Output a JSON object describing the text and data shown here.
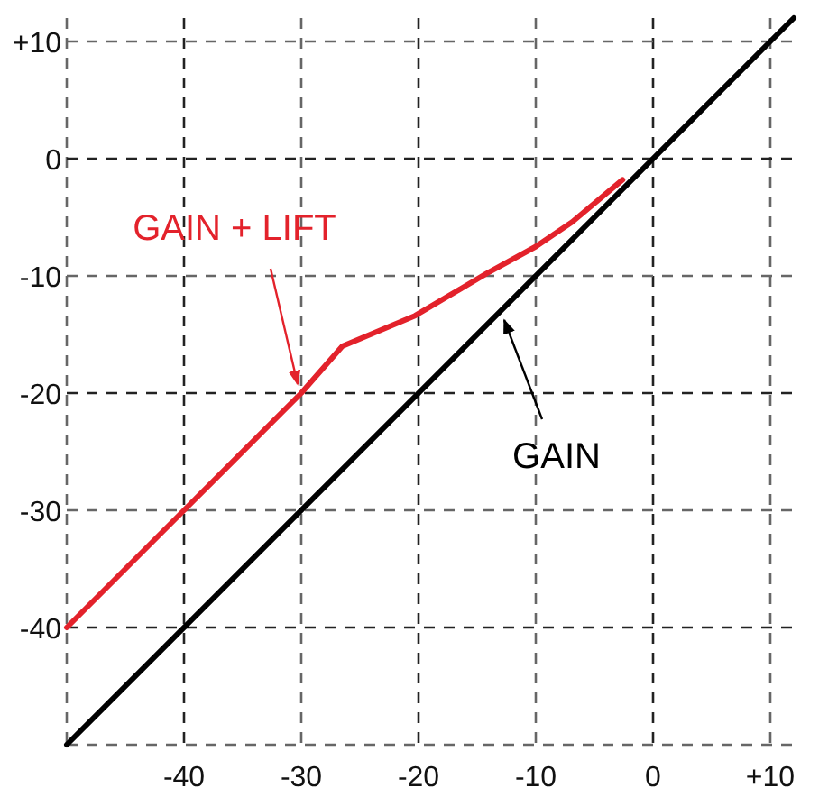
{
  "chart_data": {
    "type": "line",
    "xlim": [
      -50,
      12
    ],
    "ylim": [
      -50,
      12
    ],
    "xticks": [
      {
        "value": -50,
        "label": null
      },
      -40,
      -30,
      -20,
      -10,
      0,
      {
        "value": 10,
        "label": "+10"
      }
    ],
    "yticks": [
      {
        "value": -50,
        "label": null
      },
      -40,
      -30,
      -20,
      -10,
      0,
      {
        "value": 10,
        "label": "+10"
      }
    ],
    "grid": true,
    "line_style": "solid",
    "marker": "none",
    "series": [
      {
        "color": "#e3222b",
        "x": [
          -50,
          -40,
          -30,
          -26.5,
          -20.3,
          -14.2,
          -10,
          -6.9,
          -2.6
        ],
        "values": [
          -40,
          -30,
          -20,
          -16,
          -13.4,
          -9.8,
          -7.5,
          -5.4,
          -1.8
        ]
      },
      {
        "color": "#000000",
        "x": [
          -50,
          12
        ],
        "values": [
          -50,
          12
        ]
      }
    ],
    "annotations": [
      {
        "text": "GAIN + LIFT",
        "x": -30,
        "y": -20
      },
      {
        "text": "GAIN",
        "x": -13,
        "y": -13
      }
    ]
  }
}
